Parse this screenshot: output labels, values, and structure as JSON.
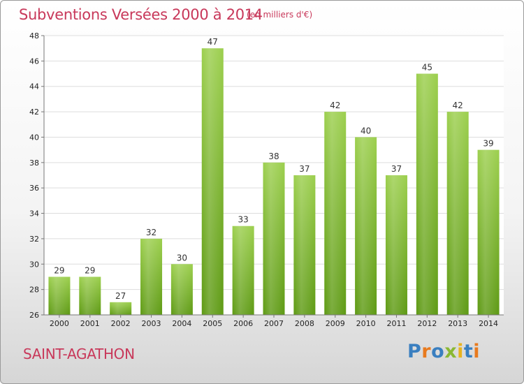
{
  "header": {
    "title": "Subventions Versées 2000 à 2014",
    "subtitle": "(en milliers d'€)"
  },
  "footer": {
    "commune": "SAINT-AGATHON",
    "logo": {
      "text": "Proxiti",
      "letters": [
        {
          "char": "P",
          "color": "#3a7fc0"
        },
        {
          "char": "r",
          "color": "#e87a1e"
        },
        {
          "char": "o",
          "color": "#3a7fc0"
        },
        {
          "char": "x",
          "color": "#8ab833"
        },
        {
          "char": "i",
          "color": "#e8b31e"
        },
        {
          "char": "t",
          "color": "#3a7fc0"
        },
        {
          "char": "i",
          "color": "#e87a1e"
        }
      ]
    }
  },
  "chart_data": {
    "type": "bar",
    "categories": [
      "2000",
      "2001",
      "2002",
      "2003",
      "2004",
      "2005",
      "2006",
      "2007",
      "2008",
      "2009",
      "2010",
      "2011",
      "2012",
      "2013",
      "2014"
    ],
    "values": [
      29,
      29,
      27,
      32,
      30,
      47,
      33,
      38,
      37,
      42,
      40,
      37,
      45,
      42,
      39
    ],
    "ylim": [
      26,
      48
    ],
    "yticks": [
      26,
      28,
      30,
      32,
      34,
      36,
      38,
      40,
      42,
      44,
      46,
      48
    ],
    "grid": true,
    "bar_color": "#7db82e"
  }
}
